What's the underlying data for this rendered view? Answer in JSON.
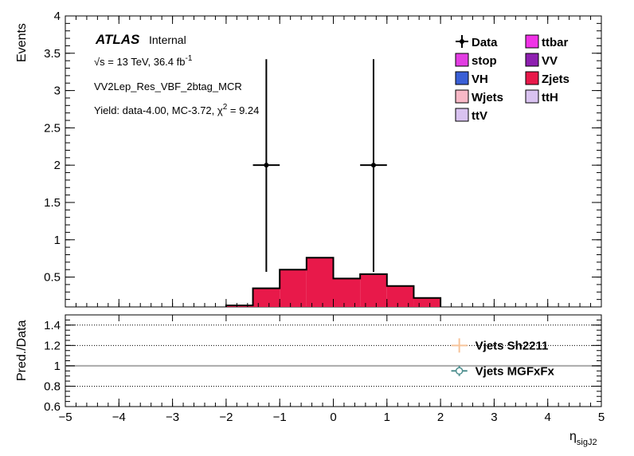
{
  "chart_data": {
    "type": "bar",
    "atlas_label": "ATLAS",
    "atlas_status": "Internal",
    "energy_text": "√s = 13 TeV, 36.4 fb",
    "energy_sup": "-1",
    "region": "VV2Lep_Res_VBF_2btag_MCR",
    "yield_text": "Yield: data-4.00, MC-3.72, χ",
    "yield_sup": "2",
    "yield_tail": " = 9.24",
    "ylabel": "Events",
    "xlabel_main": "η",
    "xlabel_sub": "sigJ2",
    "ratio_ylabel": "Pred./Data",
    "xlim": [
      -5,
      5
    ],
    "ylim": [
      0.1,
      4
    ],
    "ratio_ylim": [
      0.6,
      1.5
    ],
    "x_ticks": [
      -5,
      -4,
      -3,
      -2,
      -1,
      0,
      1,
      2,
      3,
      4,
      5
    ],
    "y_ticks": [
      0.5,
      1,
      1.5,
      2,
      2.5,
      3,
      3.5,
      4
    ],
    "y_tick_labels": [
      "0.5",
      "1",
      "1.5",
      "2",
      "2.5",
      "3",
      "3.5",
      "4"
    ],
    "ratio_y_ticks": [
      0.6,
      0.8,
      1,
      1.2,
      1.4
    ],
    "ratio_y_tick_labels": [
      "0.6",
      "0.8",
      "1",
      "1.2",
      "1.4"
    ],
    "x_tick_labels": [
      "−5",
      "−4",
      "−3",
      "−2",
      "−1",
      "0",
      "1",
      "2",
      "3",
      "4",
      "5"
    ],
    "stack_bins": [
      {
        "lo": -2.0,
        "hi": -1.5,
        "value": 0.12
      },
      {
        "lo": -1.5,
        "hi": -1.0,
        "value": 0.35
      },
      {
        "lo": -1.0,
        "hi": -0.5,
        "value": 0.6
      },
      {
        "lo": -0.5,
        "hi": 0.0,
        "value": 0.76
      },
      {
        "lo": 0.0,
        "hi": 0.5,
        "value": 0.48
      },
      {
        "lo": 0.5,
        "hi": 1.0,
        "value": 0.54
      },
      {
        "lo": 1.0,
        "hi": 1.5,
        "value": 0.38
      },
      {
        "lo": 1.5,
        "hi": 2.0,
        "value": 0.22
      }
    ],
    "stack_color": "#e8194a",
    "data_points": [
      {
        "x": -1.25,
        "xerr": 0.25,
        "y": 2.0,
        "yerr_lo": 1.43,
        "yerr_hi": 1.42
      },
      {
        "x": 0.75,
        "xerr": 0.25,
        "y": 2.0,
        "yerr_lo": 1.43,
        "yerr_hi": 1.42
      }
    ],
    "legend": [
      {
        "label": "Data",
        "kind": "marker",
        "color": "#000000"
      },
      {
        "label": "ttbar",
        "kind": "box",
        "color": "#f032e6"
      },
      {
        "label": "stop",
        "kind": "box",
        "color": "#e23ee2"
      },
      {
        "label": "VV",
        "kind": "box",
        "color": "#8e1fb0"
      },
      {
        "label": "VH",
        "kind": "box",
        "color": "#3a5fd6"
      },
      {
        "label": "Zjets",
        "kind": "box",
        "color": "#e8194a"
      },
      {
        "label": "Wjets",
        "kind": "box",
        "color": "#f8b8c6"
      },
      {
        "label": "ttH",
        "kind": "box",
        "color": "#d9c2f0"
      },
      {
        "label": "ttV",
        "kind": "box",
        "color": "#d9c2f0"
      }
    ],
    "ratio_series": [
      {
        "name": "Vjets Sh2211",
        "x": 2.35,
        "y": 1.2,
        "xerr": 0.15,
        "yerr": 0.07,
        "color": "#f7c49a",
        "marker": "none"
      },
      {
        "name": "Vjets MGFxFx",
        "x": 2.35,
        "y": 0.95,
        "xerr": 0.15,
        "yerr": 0.05,
        "color": "#4f8f8f",
        "marker": "open-circle"
      }
    ],
    "ratio_reference": 1.0,
    "ratio_dotted": [
      0.8,
      1.2,
      1.4
    ]
  }
}
